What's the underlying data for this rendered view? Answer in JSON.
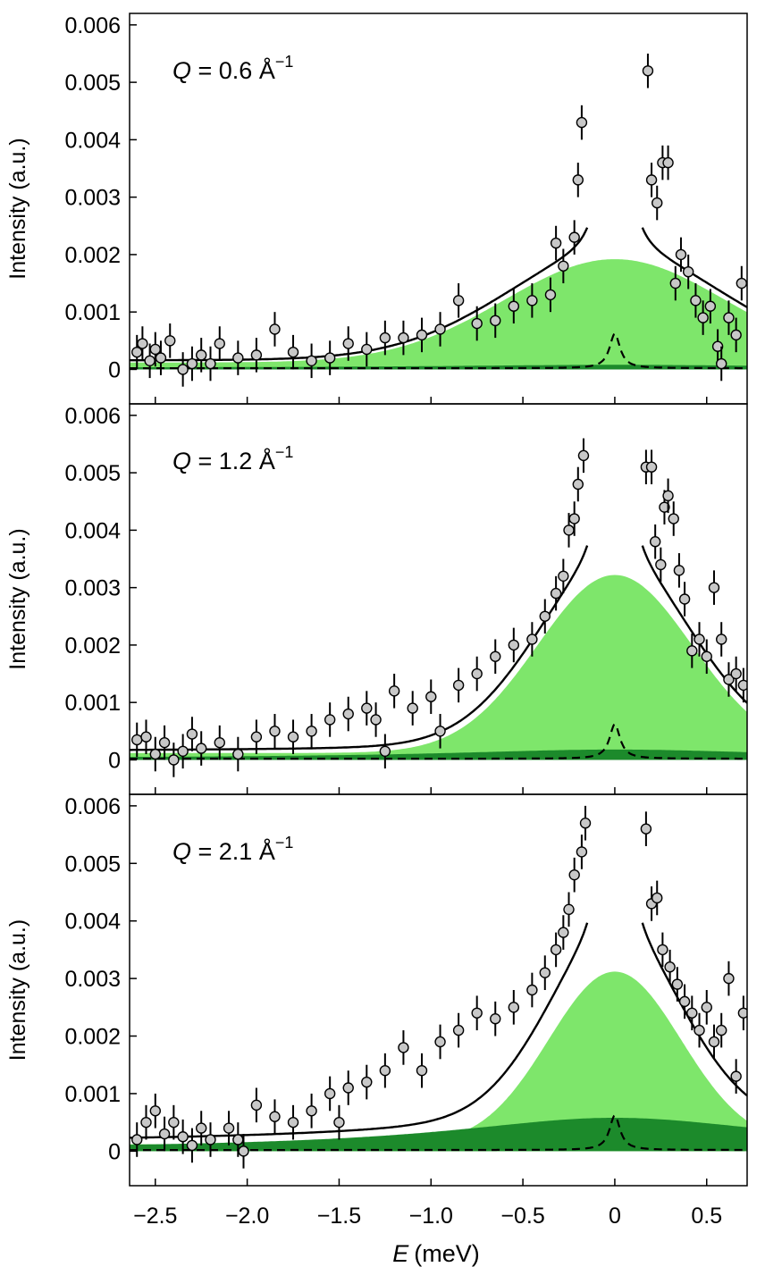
{
  "chart_data": {
    "type": "scatter",
    "xlabel_symbol": "E",
    "xlabel_unit": "(meV)",
    "xlim": [
      -2.64,
      0.72
    ],
    "x_ticks": [
      -2.5,
      -2.0,
      -1.5,
      -1.0,
      -0.5,
      0,
      0.5
    ],
    "x_tick_labels": [
      "−2.5",
      "−2.0",
      "−1.5",
      "−1.0",
      "−0.5",
      "0",
      "0.5"
    ],
    "ylabel": "Intensity (a.u.)",
    "ylim": [
      -0.0006,
      0.0062
    ],
    "y_ticks": [
      0,
      0.001,
      0.002,
      0.003,
      0.004,
      0.005,
      0.006
    ],
    "y_tick_labels": [
      "0",
      "0.001",
      "0.002",
      "0.003",
      "0.004",
      "0.005",
      "0.006"
    ],
    "colors": {
      "light_green": "#7ee66b",
      "dark_green": "#1c8a2b",
      "marker_fill": "#c8c8c8",
      "line": "#000000"
    },
    "panels": [
      {
        "q_symbol": "Q",
        "q_value": " = 0.6 Å",
        "q_exp": "−1",
        "light_green_peak": 0.0018,
        "light_green_width": 0.6,
        "dark_green_peak": 5e-05,
        "data_points": [
          [
            -2.6,
            0.0003
          ],
          [
            -2.57,
            0.00045
          ],
          [
            -2.53,
            0.00015
          ],
          [
            -2.5,
            0.00035
          ],
          [
            -2.47,
            0.0002
          ],
          [
            -2.42,
            0.0005
          ],
          [
            -2.35,
            0.0
          ],
          [
            -2.3,
            0.0001
          ],
          [
            -2.25,
            0.00025
          ],
          [
            -2.2,
            0.0001
          ],
          [
            -2.15,
            0.00045
          ],
          [
            -2.05,
            0.0002
          ],
          [
            -1.95,
            0.00025
          ],
          [
            -1.85,
            0.0007
          ],
          [
            -1.75,
            0.0003
          ],
          [
            -1.65,
            0.00015
          ],
          [
            -1.55,
            0.0002
          ],
          [
            -1.45,
            0.00045
          ],
          [
            -1.35,
            0.00035
          ],
          [
            -1.25,
            0.00055
          ],
          [
            -1.15,
            0.00055
          ],
          [
            -1.05,
            0.0006
          ],
          [
            -0.95,
            0.0007
          ],
          [
            -0.85,
            0.0012
          ],
          [
            -0.75,
            0.0008
          ],
          [
            -0.65,
            0.00085
          ],
          [
            -0.55,
            0.0011
          ],
          [
            -0.45,
            0.0012
          ],
          [
            -0.35,
            0.0013
          ],
          [
            -0.32,
            0.0022
          ],
          [
            -0.28,
            0.0018
          ],
          [
            -0.22,
            0.0023
          ],
          [
            -0.2,
            0.0033
          ],
          [
            -0.18,
            0.0043
          ],
          [
            0.18,
            0.0052
          ],
          [
            0.2,
            0.0033
          ],
          [
            0.23,
            0.0029
          ],
          [
            0.26,
            0.0036
          ],
          [
            0.29,
            0.0036
          ],
          [
            0.33,
            0.0015
          ],
          [
            0.36,
            0.002
          ],
          [
            0.4,
            0.0017
          ],
          [
            0.44,
            0.0012
          ],
          [
            0.48,
            0.0009
          ],
          [
            0.52,
            0.0011
          ],
          [
            0.56,
            0.0004
          ],
          [
            0.58,
            0.0001
          ],
          [
            0.62,
            0.0009
          ],
          [
            0.66,
            0.0006
          ],
          [
            0.69,
            0.0015
          ]
        ]
      },
      {
        "q_symbol": "Q",
        "q_value": " = 1.2 Å",
        "q_exp": "−1",
        "light_green_peak": 0.0031,
        "light_green_width": 0.42,
        "dark_green_peak": 0.00015,
        "data_points": [
          [
            -2.6,
            0.00035
          ],
          [
            -2.55,
            0.0004
          ],
          [
            -2.5,
            0.0001
          ],
          [
            -2.45,
            0.0003
          ],
          [
            -2.4,
            0.0
          ],
          [
            -2.35,
            0.00015
          ],
          [
            -2.3,
            0.00045
          ],
          [
            -2.25,
            0.0002
          ],
          [
            -2.15,
            0.0003
          ],
          [
            -2.05,
            0.0001
          ],
          [
            -1.95,
            0.0004
          ],
          [
            -1.85,
            0.0005
          ],
          [
            -1.75,
            0.0004
          ],
          [
            -1.65,
            0.0005
          ],
          [
            -1.55,
            0.0007
          ],
          [
            -1.45,
            0.0008
          ],
          [
            -1.35,
            0.0009
          ],
          [
            -1.3,
            0.0007
          ],
          [
            -1.25,
            0.00015
          ],
          [
            -1.2,
            0.0012
          ],
          [
            -1.1,
            0.0009
          ],
          [
            -1.0,
            0.0011
          ],
          [
            -0.95,
            0.0005
          ],
          [
            -0.85,
            0.0013
          ],
          [
            -0.75,
            0.0015
          ],
          [
            -0.65,
            0.0018
          ],
          [
            -0.55,
            0.002
          ],
          [
            -0.45,
            0.0021
          ],
          [
            -0.38,
            0.0025
          ],
          [
            -0.32,
            0.0029
          ],
          [
            -0.28,
            0.0032
          ],
          [
            -0.25,
            0.004
          ],
          [
            -0.22,
            0.0042
          ],
          [
            -0.2,
            0.0048
          ],
          [
            -0.17,
            0.0053
          ],
          [
            0.17,
            0.0051
          ],
          [
            0.2,
            0.0051
          ],
          [
            0.22,
            0.0038
          ],
          [
            0.25,
            0.0034
          ],
          [
            0.27,
            0.0044
          ],
          [
            0.29,
            0.0046
          ],
          [
            0.32,
            0.0042
          ],
          [
            0.35,
            0.0033
          ],
          [
            0.38,
            0.0028
          ],
          [
            0.42,
            0.0019
          ],
          [
            0.46,
            0.0021
          ],
          [
            0.5,
            0.0018
          ],
          [
            0.54,
            0.003
          ],
          [
            0.58,
            0.0021
          ],
          [
            0.62,
            0.0014
          ],
          [
            0.66,
            0.0015
          ],
          [
            0.7,
            0.0013
          ]
        ]
      },
      {
        "q_symbol": "Q",
        "q_value": " = 2.1 Å",
        "q_exp": "−1",
        "light_green_peak": 0.003,
        "light_green_width": 0.36,
        "dark_green_peak": 0.00055,
        "data_points": [
          [
            -2.6,
            0.0002
          ],
          [
            -2.55,
            0.0005
          ],
          [
            -2.5,
            0.0007
          ],
          [
            -2.45,
            0.0003
          ],
          [
            -2.4,
            0.0005
          ],
          [
            -2.35,
            0.00025
          ],
          [
            -2.3,
            0.0001
          ],
          [
            -2.25,
            0.0004
          ],
          [
            -2.2,
            0.0002
          ],
          [
            -2.1,
            0.0004
          ],
          [
            -2.05,
            0.0002
          ],
          [
            -2.02,
            0.0
          ],
          [
            -1.95,
            0.0008
          ],
          [
            -1.85,
            0.0006
          ],
          [
            -1.75,
            0.0005
          ],
          [
            -1.65,
            0.0007
          ],
          [
            -1.55,
            0.001
          ],
          [
            -1.5,
            0.0005
          ],
          [
            -1.45,
            0.0011
          ],
          [
            -1.35,
            0.0012
          ],
          [
            -1.25,
            0.0014
          ],
          [
            -1.15,
            0.0018
          ],
          [
            -1.05,
            0.0014
          ],
          [
            -0.95,
            0.0019
          ],
          [
            -0.85,
            0.0021
          ],
          [
            -0.75,
            0.0024
          ],
          [
            -0.65,
            0.0023
          ],
          [
            -0.55,
            0.0025
          ],
          [
            -0.45,
            0.0028
          ],
          [
            -0.38,
            0.0031
          ],
          [
            -0.32,
            0.0035
          ],
          [
            -0.28,
            0.0038
          ],
          [
            -0.25,
            0.0042
          ],
          [
            -0.22,
            0.0048
          ],
          [
            -0.18,
            0.0052
          ],
          [
            -0.16,
            0.0057
          ],
          [
            0.17,
            0.0056
          ],
          [
            0.2,
            0.0043
          ],
          [
            0.23,
            0.0044
          ],
          [
            0.26,
            0.0035
          ],
          [
            0.3,
            0.0032
          ],
          [
            0.34,
            0.0029
          ],
          [
            0.38,
            0.0026
          ],
          [
            0.42,
            0.0024
          ],
          [
            0.46,
            0.0021
          ],
          [
            0.5,
            0.0025
          ],
          [
            0.54,
            0.0019
          ],
          [
            0.58,
            0.0021
          ],
          [
            0.62,
            0.003
          ],
          [
            0.66,
            0.0013
          ],
          [
            0.7,
            0.0024
          ]
        ]
      }
    ]
  }
}
